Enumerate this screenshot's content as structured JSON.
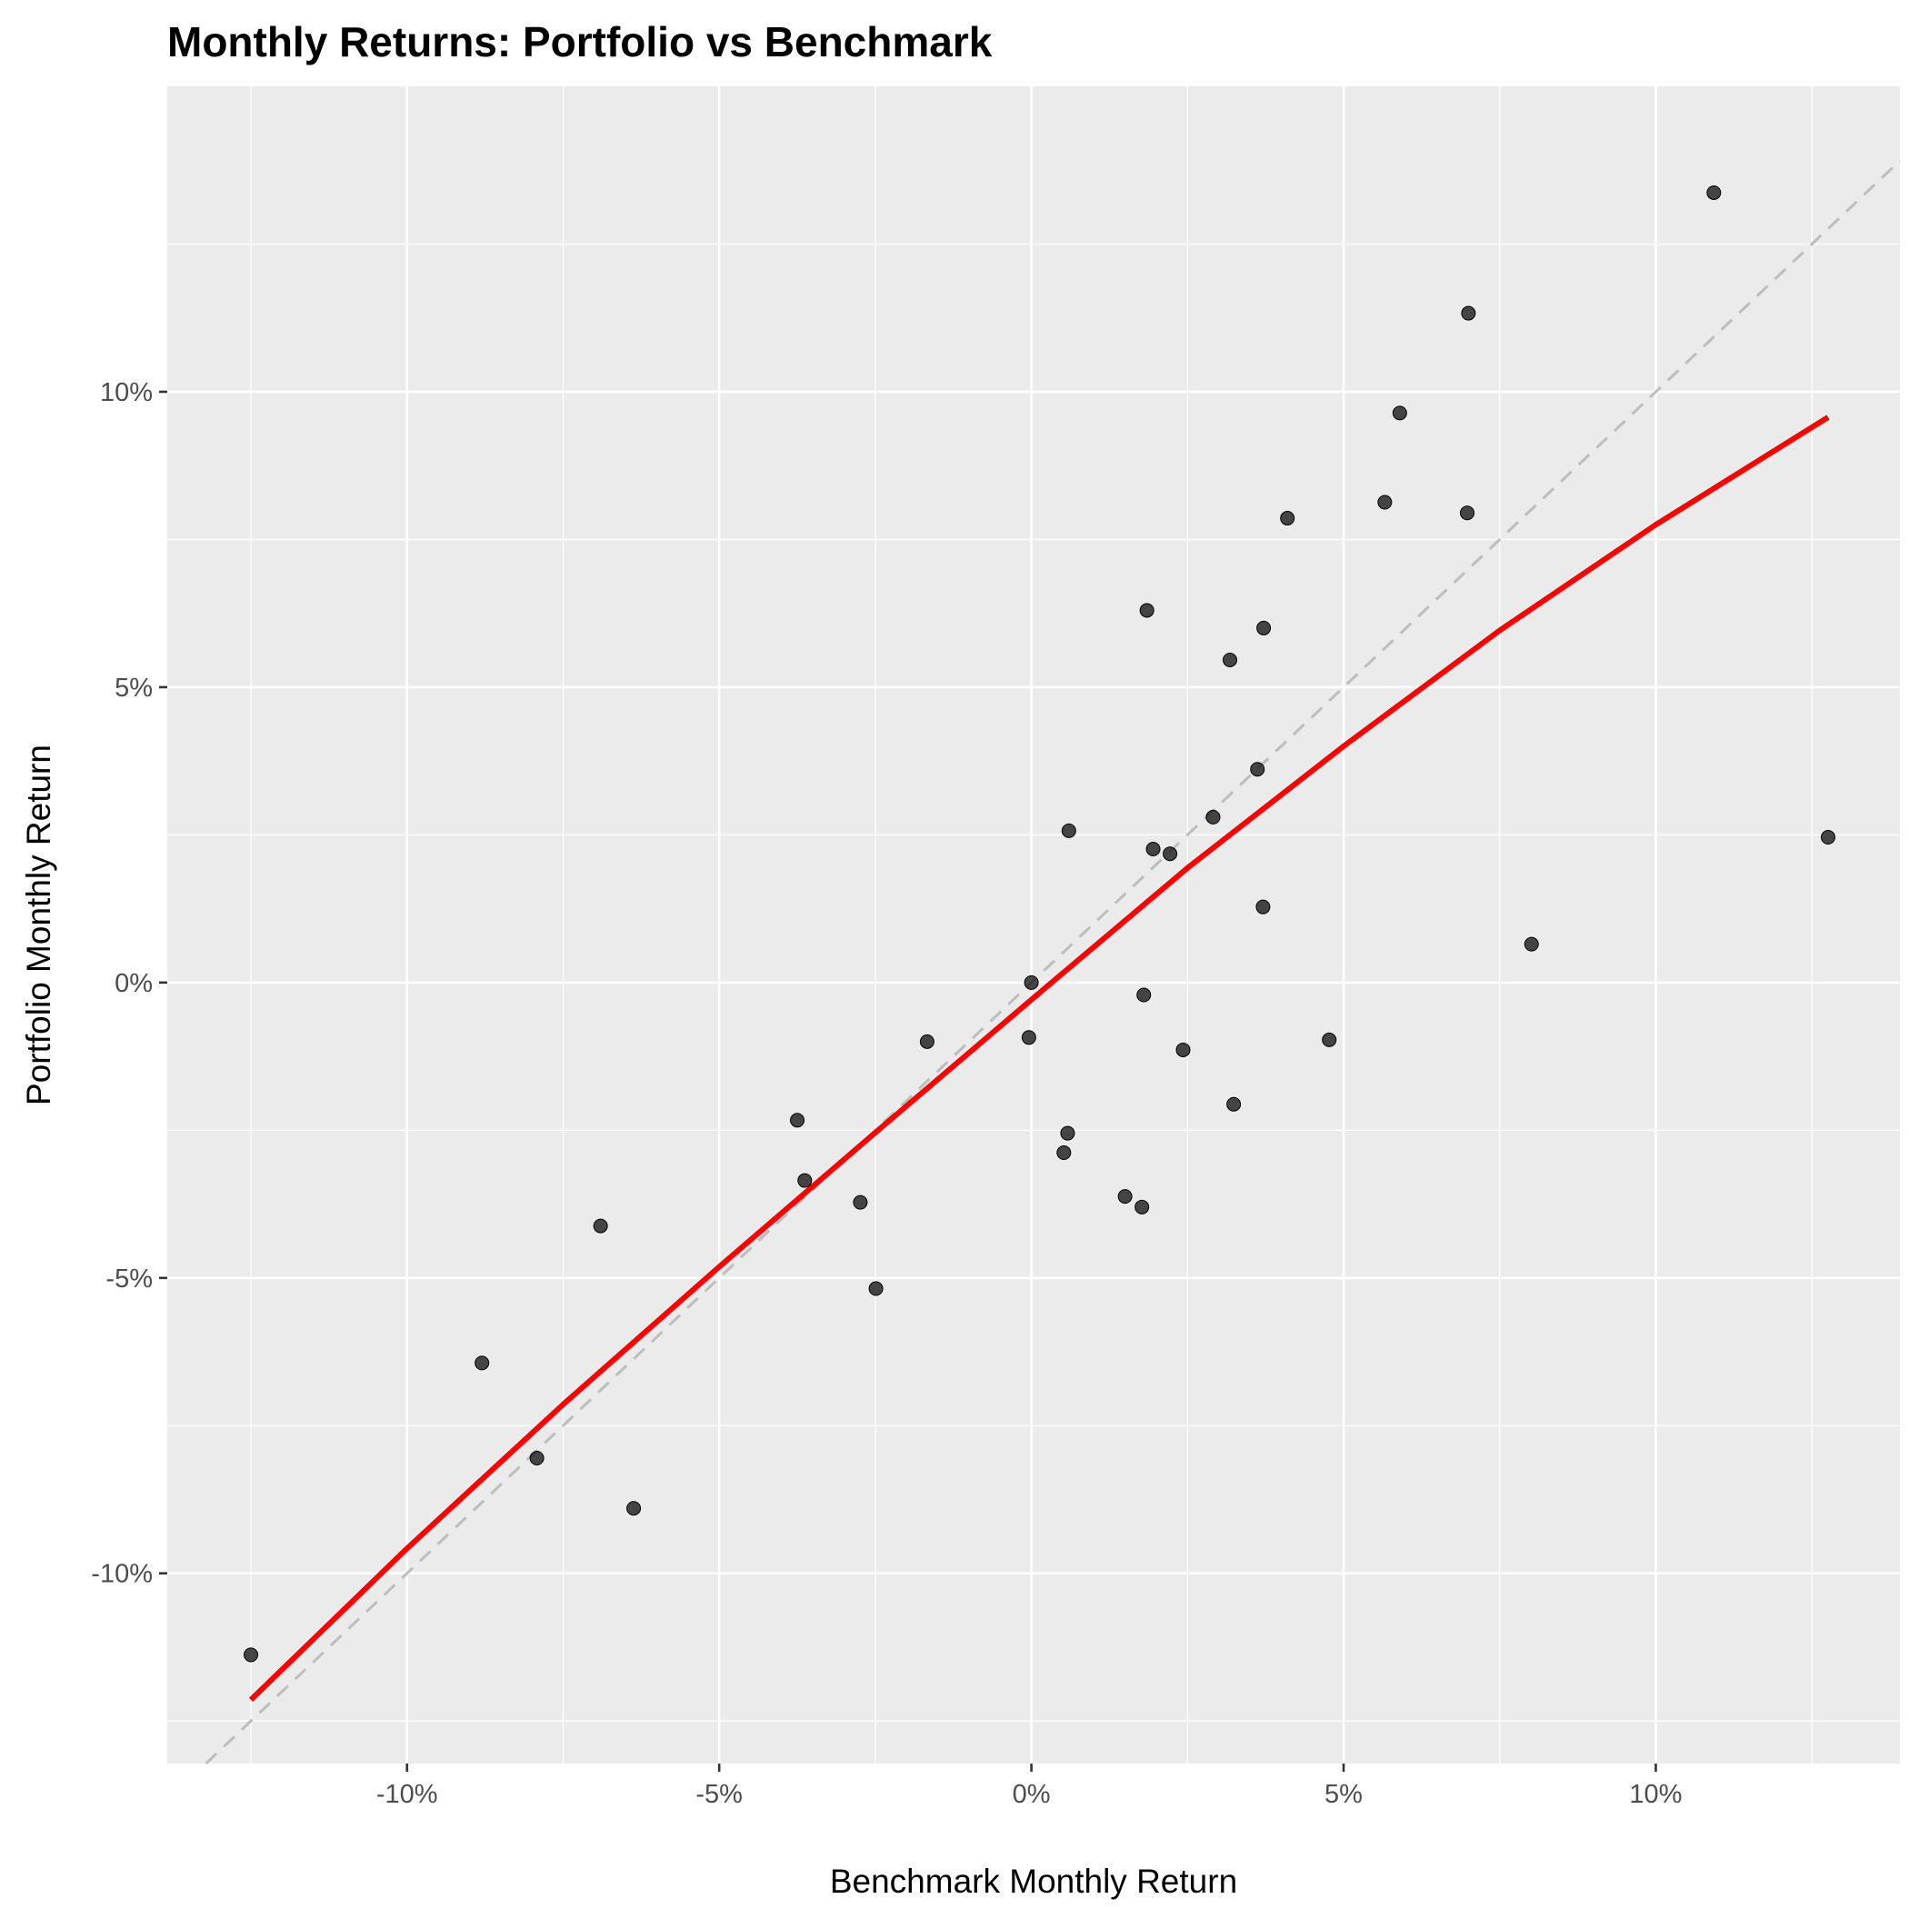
{
  "chart_data": {
    "type": "scatter",
    "title": "Monthly Returns: Portfolio vs Benchmark",
    "xlabel": "Benchmark Monthly Return",
    "ylabel": "Portfolio Monthly Return",
    "xlim": [
      -0.1384,
      0.1391
    ],
    "ylim": [
      -0.1322,
      0.1517
    ],
    "x_ticks": [
      {
        "value": -0.1,
        "label": "-10%"
      },
      {
        "value": -0.05,
        "label": "-5%"
      },
      {
        "value": 0.0,
        "label": "0%"
      },
      {
        "value": 0.05,
        "label": "5%"
      },
      {
        "value": 0.1,
        "label": "10%"
      }
    ],
    "y_ticks": [
      {
        "value": -0.1,
        "label": "-10%"
      },
      {
        "value": -0.05,
        "label": "-5%"
      },
      {
        "value": 0.0,
        "label": "0%"
      },
      {
        "value": 0.05,
        "label": "5%"
      },
      {
        "value": 0.1,
        "label": "10%"
      }
    ],
    "grid": true,
    "legend": "none",
    "colors": {
      "panel_background": "#ebebeb",
      "grid": "#ffffff",
      "points": "#1a1a1a",
      "fit_line": "#ff0000",
      "reference_line": "#bdbdbd"
    },
    "points": [
      {
        "x": -0.125,
        "y": -0.1138
      },
      {
        "x": -0.088,
        "y": -0.0644
      },
      {
        "x": -0.0792,
        "y": -0.0805
      },
      {
        "x": -0.069,
        "y": -0.0412
      },
      {
        "x": -0.0637,
        "y": -0.089
      },
      {
        "x": -0.0375,
        "y": -0.0233
      },
      {
        "x": -0.0363,
        "y": -0.0335
      },
      {
        "x": -0.0274,
        "y": -0.0372
      },
      {
        "x": -0.0249,
        "y": -0.0518
      },
      {
        "x": -0.0167,
        "y": -0.01
      },
      {
        "x": -0.0004,
        "y": -0.0093
      },
      {
        "x": 0.0,
        "y": 0.0
      },
      {
        "x": 0.0052,
        "y": -0.0288
      },
      {
        "x": 0.0058,
        "y": -0.0255
      },
      {
        "x": 0.006,
        "y": 0.0257
      },
      {
        "x": 0.015,
        "y": -0.0362
      },
      {
        "x": 0.0177,
        "y": -0.038
      },
      {
        "x": 0.018,
        "y": -0.0021
      },
      {
        "x": 0.0185,
        "y": 0.063
      },
      {
        "x": 0.0195,
        "y": 0.0226
      },
      {
        "x": 0.0222,
        "y": 0.0218
      },
      {
        "x": 0.0243,
        "y": -0.0114
      },
      {
        "x": 0.0291,
        "y": 0.028
      },
      {
        "x": 0.0318,
        "y": 0.0546
      },
      {
        "x": 0.0324,
        "y": -0.0206
      },
      {
        "x": 0.0362,
        "y": 0.0361
      },
      {
        "x": 0.0371,
        "y": 0.0128
      },
      {
        "x": 0.0372,
        "y": 0.06
      },
      {
        "x": 0.041,
        "y": 0.0786
      },
      {
        "x": 0.0477,
        "y": -0.0097
      },
      {
        "x": 0.0566,
        "y": 0.0813
      },
      {
        "x": 0.059,
        "y": 0.0964
      },
      {
        "x": 0.0698,
        "y": 0.0795
      },
      {
        "x": 0.07,
        "y": 0.1133
      },
      {
        "x": 0.0801,
        "y": 0.0065
      },
      {
        "x": 0.1093,
        "y": 0.1337
      },
      {
        "x": 0.1276,
        "y": 0.0246
      }
    ],
    "fit_line": {
      "x": [
        -0.125,
        -0.1,
        -0.075,
        -0.05,
        -0.025,
        0.0,
        0.025,
        0.05,
        0.075,
        0.1,
        0.1276
      ],
      "y": [
        -0.1214,
        -0.0958,
        -0.0714,
        -0.0481,
        -0.0254,
        -0.0029,
        0.0194,
        0.04,
        0.0596,
        0.0775,
        0.0957
      ]
    },
    "reference_line": {
      "slope": 1,
      "intercept": 0
    }
  }
}
